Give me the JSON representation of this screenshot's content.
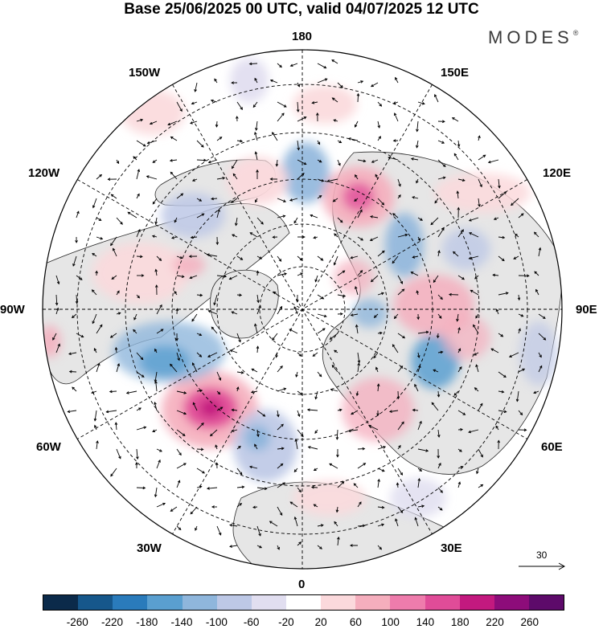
{
  "header": {
    "title": "Base 25/06/2025 00 UTC, valid 04/07/2025 12 UTC",
    "brand": "MODES",
    "brand_mark": "®"
  },
  "map": {
    "projection": "north-polar-stereographic",
    "longitude_labels": {
      "top": "180",
      "bottom": "0",
      "left": "90W",
      "right": "90E",
      "upper_left_1": "150W",
      "upper_left_2": "120W",
      "upper_right_1": "150E",
      "upper_right_2": "120E",
      "lower_left_1": "60W",
      "lower_left_2": "30W",
      "lower_right_1": "60E",
      "lower_right_2": "30E"
    },
    "anomaly_centers": [
      {
        "lon": -40,
        "lat": 48,
        "value": 230
      },
      {
        "lon": 170,
        "lat": 62,
        "value": -120
      },
      {
        "lon": 148,
        "lat": 55,
        "value": 160
      },
      {
        "lon": 120,
        "lat": 65,
        "value": -100
      },
      {
        "lon": 80,
        "lat": 50,
        "value": -130
      },
      {
        "lon": 98,
        "lat": 58,
        "value": 90
      },
      {
        "lon": -70,
        "lat": 60,
        "value": -130
      },
      {
        "lon": -120,
        "lat": 62,
        "value": -70
      },
      {
        "lon": -160,
        "lat": 58,
        "value": 60
      },
      {
        "lon": 25,
        "lat": 55,
        "value": 70
      },
      {
        "lon": -20,
        "lat": 55,
        "value": -90
      },
      {
        "lon": -100,
        "lat": 40,
        "value": 60
      }
    ]
  },
  "vector_reference": {
    "value": "30"
  },
  "colorbar": {
    "colors": [
      "#0b2a4a",
      "#16578b",
      "#2a7bbb",
      "#5a9fd0",
      "#8fb6dc",
      "#bdc8e6",
      "#e1def0",
      "#ffffff",
      "#fbd9dc",
      "#f5aebd",
      "#ee7cac",
      "#e04c98",
      "#c3197f",
      "#8d0c7a",
      "#5d0a6a"
    ],
    "tick_labels": [
      "-260",
      "-220",
      "-180",
      "-140",
      "-100",
      "-60",
      "-20",
      "20",
      "60",
      "100",
      "140",
      "180",
      "220",
      "260"
    ]
  }
}
